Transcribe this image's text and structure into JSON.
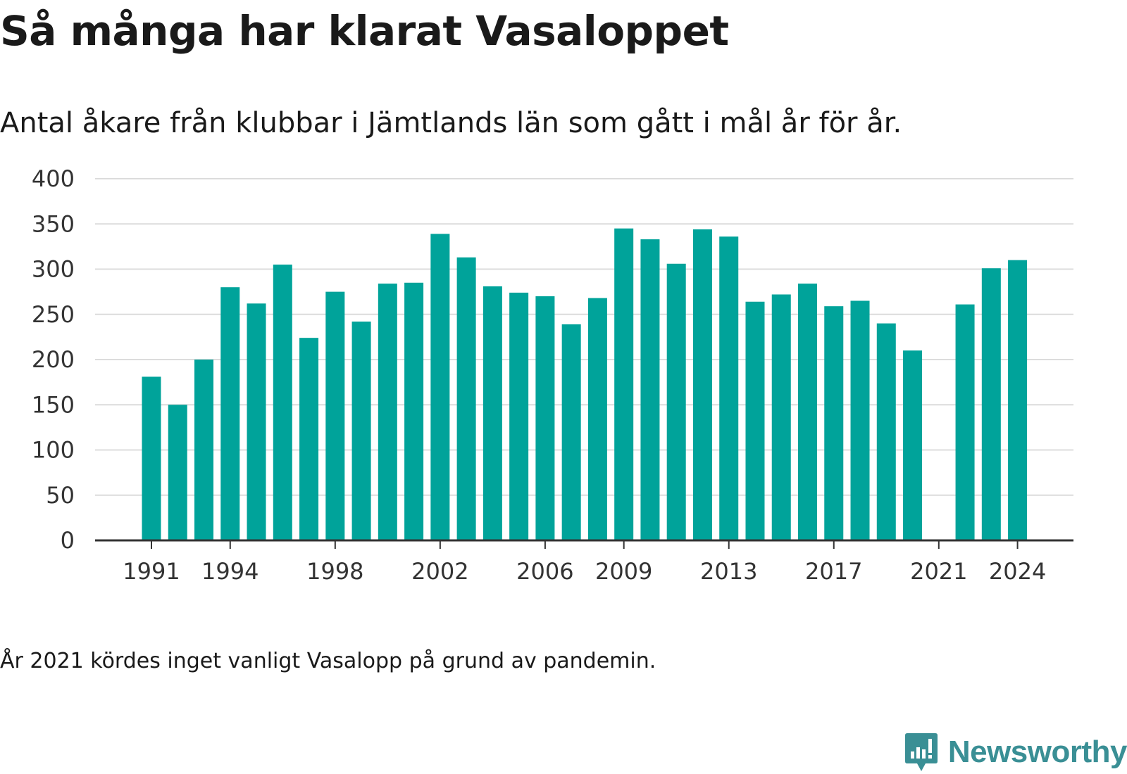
{
  "title": "Så många har klarat Vasaloppet",
  "subtitle": "Antal åkare från klubbar i Jämtlands län som gått i mål år för år.",
  "footnote": "År 2021 kördes inget vanligt Vasalopp på grund av pandemin.",
  "brand": {
    "name": "Newsworthy",
    "icon": "newsworthy-logo-icon",
    "color": "#3a8f95"
  },
  "chart_data": {
    "type": "bar",
    "title": "Så många har klarat Vasaloppet",
    "subtitle": "Antal åkare från klubbar i Jämtlands län som gått i mål år för år.",
    "xlabel": "",
    "ylabel": "",
    "ylim": [
      0,
      400
    ],
    "y_ticks": [
      0,
      50,
      100,
      150,
      200,
      250,
      300,
      350,
      400
    ],
    "x_tick_labels": [
      "1991",
      "1994",
      "1998",
      "2002",
      "2006",
      "2009",
      "2013",
      "2017",
      "2021",
      "2024"
    ],
    "grid": true,
    "bar_color": "#00a39a",
    "categories": [
      1991,
      1992,
      1993,
      1994,
      1995,
      1996,
      1997,
      1998,
      1999,
      2000,
      2001,
      2002,
      2003,
      2004,
      2005,
      2006,
      2007,
      2008,
      2009,
      2010,
      2011,
      2012,
      2013,
      2014,
      2015,
      2016,
      2017,
      2018,
      2019,
      2020,
      2021,
      2022,
      2023,
      2024
    ],
    "values": [
      181,
      150,
      200,
      280,
      262,
      305,
      224,
      275,
      242,
      284,
      285,
      339,
      313,
      281,
      274,
      270,
      239,
      268,
      345,
      333,
      306,
      344,
      336,
      264,
      272,
      284,
      259,
      265,
      240,
      210,
      null,
      261,
      301,
      310
    ]
  }
}
